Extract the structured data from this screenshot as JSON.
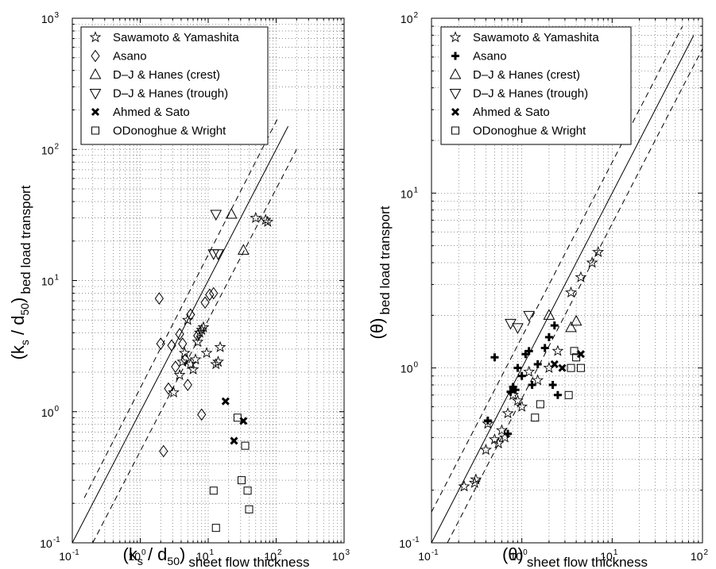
{
  "chart_data": [
    {
      "type": "scatter",
      "xscale": "log",
      "yscale": "log",
      "xlim": [
        0.1,
        1000
      ],
      "ylim": [
        0.1,
        1000
      ],
      "xlabel": {
        "main": "(k",
        "sub1": "s",
        "mid": " / d",
        "sub2": "50",
        "close": ")",
        "tail": "sheet flow thickness"
      },
      "ylabel": {
        "main": "(k",
        "sub1": "s",
        "mid": " / d",
        "sub2": "50",
        "close": ")",
        "tail": "bed load transport"
      },
      "grid": true,
      "legend_position": "top",
      "lines": [
        {
          "style": "solid",
          "points": [
            [
              0.1,
              0.1
            ],
            [
              150,
              150
            ]
          ]
        },
        {
          "style": "dashed",
          "points": [
            [
              0.15,
              0.22
            ],
            [
              110,
              180
            ]
          ]
        },
        {
          "style": "dashed",
          "points": [
            [
              0.2,
              0.1
            ],
            [
              200,
              100
            ]
          ]
        }
      ],
      "series": [
        {
          "name": "Sawamoto & Yamashita",
          "marker": "star",
          "points": [
            [
              3.1,
              1.4
            ],
            [
              3.8,
              1.9
            ],
            [
              4.2,
              2.4
            ],
            [
              4.5,
              2.8
            ],
            [
              5.0,
              5.0
            ],
            [
              5.5,
              2.3
            ],
            [
              6.0,
              2.1
            ],
            [
              6.5,
              2.5
            ],
            [
              7.0,
              3.4
            ],
            [
              7.5,
              4.0
            ],
            [
              8.0,
              4.2
            ],
            [
              8.5,
              4.4
            ],
            [
              9.5,
              2.8
            ],
            [
              13,
              2.3
            ],
            [
              14,
              2.4
            ],
            [
              15,
              3.1
            ],
            [
              50,
              30
            ],
            [
              70,
              29
            ],
            [
              75,
              28
            ]
          ]
        },
        {
          "name": "Asano",
          "marker": "diamond",
          "points": [
            [
              1.9,
              7.3
            ],
            [
              2.0,
              3.3
            ],
            [
              2.2,
              0.5
            ],
            [
              2.6,
              1.5
            ],
            [
              2.9,
              3.2
            ],
            [
              3.3,
              2.2
            ],
            [
              3.8,
              3.9
            ],
            [
              4.2,
              3.3
            ],
            [
              4.6,
              2.5
            ],
            [
              5.0,
              1.6
            ],
            [
              5.5,
              5.5
            ],
            [
              7.0,
              3.8
            ],
            [
              8.0,
              0.95
            ],
            [
              9.0,
              6.8
            ],
            [
              10.5,
              7.8
            ],
            [
              12,
              8.0
            ]
          ]
        },
        {
          "name": "D–J & Hanes (crest)",
          "marker": "triangle-up",
          "points": [
            [
              22,
              32
            ],
            [
              33,
              17
            ]
          ]
        },
        {
          "name": "D–J & Hanes (trough)",
          "marker": "triangle-down",
          "points": [
            [
              12,
              16
            ],
            [
              13,
              32
            ],
            [
              14,
              16
            ]
          ]
        },
        {
          "name": "Ahmed & Sato",
          "marker": "x",
          "points": [
            [
              18,
              1.2
            ],
            [
              24,
              0.6
            ],
            [
              33,
              0.85
            ]
          ]
        },
        {
          "name": "ODonoghue & Wright",
          "marker": "square",
          "points": [
            [
              12,
              0.25
            ],
            [
              13,
              0.13
            ],
            [
              27,
              0.9
            ],
            [
              31,
              0.3
            ],
            [
              35,
              0.55
            ],
            [
              38,
              0.25
            ],
            [
              40,
              0.18
            ]
          ]
        }
      ]
    },
    {
      "type": "scatter",
      "xscale": "log",
      "yscale": "log",
      "xlim": [
        0.1,
        100
      ],
      "ylim": [
        0.1,
        100
      ],
      "xlabel": {
        "main": "(θ)",
        "tail": "sheet flow thickness"
      },
      "ylabel": {
        "main": "(θ)",
        "tail": "bed load transport"
      },
      "grid": true,
      "legend_position": "top",
      "lines": [
        {
          "style": "solid",
          "points": [
            [
              0.1,
              0.1
            ],
            [
              80,
              80
            ]
          ]
        },
        {
          "style": "dashed",
          "points": [
            [
              0.1,
              0.15
            ],
            [
              60,
              90
            ]
          ]
        },
        {
          "style": "dashed",
          "points": [
            [
              0.15,
              0.1
            ],
            [
              100,
              67
            ]
          ]
        }
      ],
      "series": [
        {
          "name": "Sawamoto & Yamashita",
          "marker": "star",
          "points": [
            [
              0.23,
              0.21
            ],
            [
              0.3,
              0.22
            ],
            [
              0.31,
              0.23
            ],
            [
              0.4,
              0.34
            ],
            [
              0.42,
              0.48
            ],
            [
              0.5,
              0.39
            ],
            [
              0.55,
              0.37
            ],
            [
              0.6,
              0.44
            ],
            [
              0.65,
              0.4
            ],
            [
              0.7,
              0.55
            ],
            [
              0.8,
              0.7
            ],
            [
              0.9,
              0.65
            ],
            [
              1.0,
              0.6
            ],
            [
              1.2,
              0.95
            ],
            [
              1.5,
              0.85
            ],
            [
              2.0,
              1.0
            ],
            [
              2.5,
              1.25
            ],
            [
              3.5,
              2.7
            ],
            [
              4.5,
              3.3
            ],
            [
              6.0,
              4.0
            ],
            [
              7.0,
              4.6
            ]
          ]
        },
        {
          "name": "Asano",
          "marker": "plus",
          "points": [
            [
              0.42,
              0.5
            ],
            [
              0.5,
              1.15
            ],
            [
              0.7,
              0.42
            ],
            [
              0.75,
              0.73
            ],
            [
              0.8,
              0.78
            ],
            [
              0.85,
              0.75
            ],
            [
              0.9,
              1.0
            ],
            [
              1.0,
              0.9
            ],
            [
              1.1,
              1.2
            ],
            [
              1.2,
              1.25
            ],
            [
              1.3,
              0.8
            ],
            [
              1.5,
              1.05
            ],
            [
              1.8,
              1.3
            ],
            [
              2.0,
              1.5
            ],
            [
              2.2,
              0.8
            ],
            [
              2.3,
              1.75
            ],
            [
              2.5,
              0.7
            ]
          ]
        },
        {
          "name": "D–J & Hanes (crest)",
          "marker": "triangle-up",
          "points": [
            [
              2.0,
              2.0
            ],
            [
              3.5,
              1.7
            ],
            [
              4.0,
              1.85
            ]
          ]
        },
        {
          "name": "D–J & Hanes (trough)",
          "marker": "triangle-down",
          "points": [
            [
              0.75,
              1.8
            ],
            [
              0.9,
              1.7
            ],
            [
              1.2,
              2.0
            ]
          ]
        },
        {
          "name": "Ahmed & Sato",
          "marker": "x",
          "points": [
            [
              2.3,
              1.05
            ],
            [
              2.8,
              1.0
            ],
            [
              4.5,
              1.2
            ]
          ]
        },
        {
          "name": "ODonoghue & Wright",
          "marker": "square",
          "points": [
            [
              1.4,
              0.52
            ],
            [
              1.6,
              0.62
            ],
            [
              3.3,
              0.7
            ],
            [
              3.5,
              1.0
            ],
            [
              3.8,
              1.25
            ],
            [
              4.0,
              1.15
            ],
            [
              4.5,
              1.0
            ]
          ]
        }
      ]
    }
  ]
}
